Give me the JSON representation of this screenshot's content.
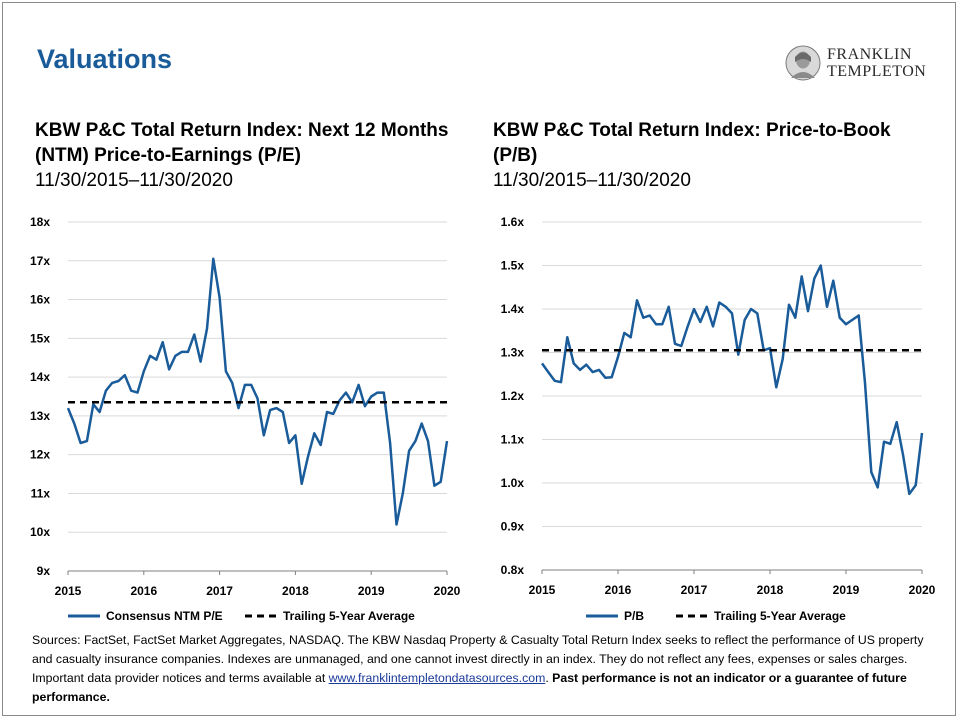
{
  "page": {
    "title": "Valuations",
    "logo": {
      "line1": "FRANKLIN",
      "line2": "TEMPLETON"
    }
  },
  "footnote": {
    "text": "Sources: FactSet, FactSet Market Aggregates, NASDAQ. The KBW Nasdaq Property & Casualty Total Return Index seeks to reflect the performance of US property and casualty insurance companies. Indexes are unmanaged, and one cannot invest directly in an index. They do not reflect any fees, expenses or sales charges. Important data provider notices and terms available at ",
    "link": "www.franklintempletondatasources.com",
    "after_link": ". ",
    "bold": "Past performance is not an indicator or a guarantee of future performance."
  },
  "chart_data": [
    {
      "type": "line",
      "title": "KBW P&C Total Return Index: Next 12 Months (NTM) Price-to-Earnings (P/E)",
      "subtitle": "11/30/2015–11/30/2020",
      "x_ticks": [
        "2015",
        "2016",
        "2017",
        "2018",
        "2019",
        "2020"
      ],
      "xlim": [
        2015,
        2020
      ],
      "y_ticks": [
        "9x",
        "10x",
        "11x",
        "12x",
        "13x",
        "14x",
        "15x",
        "16x",
        "17x",
        "18x"
      ],
      "ylim": [
        9,
        18
      ],
      "grid": true,
      "legend": "bottom",
      "series": [
        {
          "name": "Consensus NTM P/E",
          "style": "solid",
          "color": "#1a5b9a",
          "x_start": 2015,
          "x_step": 0.08333,
          "values": [
            13.2,
            12.8,
            12.3,
            12.35,
            13.3,
            13.1,
            13.65,
            13.85,
            13.9,
            14.05,
            13.65,
            13.6,
            14.15,
            14.55,
            14.45,
            14.9,
            14.2,
            14.55,
            14.65,
            14.65,
            15.1,
            14.4,
            15.25,
            17.05,
            16.05,
            14.15,
            13.85,
            13.2,
            13.8,
            13.8,
            13.45,
            12.5,
            13.15,
            13.2,
            13.1,
            12.3,
            12.5,
            11.25,
            11.95,
            12.55,
            12.25,
            13.1,
            13.05,
            13.4,
            13.6,
            13.35,
            13.8,
            13.25,
            13.5,
            13.6,
            13.6,
            12.3,
            10.2,
            11.0,
            12.1,
            12.35,
            12.8,
            12.35,
            11.2,
            11.3,
            12.35
          ]
        },
        {
          "name": "Trailing 5-Year Average",
          "style": "dashed",
          "color": "#000000",
          "x": [
            2015,
            2020
          ],
          "values": [
            13.35,
            13.35
          ]
        }
      ]
    },
    {
      "type": "line",
      "title": "KBW P&C Total Return Index: Price-to-Book (P/B)",
      "subtitle": "11/30/2015–11/30/2020",
      "x_ticks": [
        "2015",
        "2016",
        "2017",
        "2018",
        "2019",
        "2020"
      ],
      "xlim": [
        2015,
        2020
      ],
      "y_ticks": [
        "0.8x",
        "0.9x",
        "1.0x",
        "1.1x",
        "1.2x",
        "1.3x",
        "1.4x",
        "1.5x",
        "1.6x"
      ],
      "ylim": [
        0.8,
        1.6
      ],
      "grid": true,
      "legend": "bottom",
      "series": [
        {
          "name": "P/B",
          "style": "solid",
          "color": "#1a5b9a",
          "x_start": 2015,
          "x_step": 0.08333,
          "values": [
            1.275,
            1.255,
            1.235,
            1.232,
            1.335,
            1.275,
            1.26,
            1.272,
            1.255,
            1.26,
            1.242,
            1.243,
            1.29,
            1.345,
            1.335,
            1.42,
            1.38,
            1.385,
            1.365,
            1.365,
            1.405,
            1.32,
            1.315,
            1.36,
            1.4,
            1.37,
            1.405,
            1.36,
            1.415,
            1.405,
            1.39,
            1.295,
            1.375,
            1.4,
            1.39,
            1.305,
            1.31,
            1.22,
            1.285,
            1.41,
            1.38,
            1.475,
            1.395,
            1.47,
            1.5,
            1.405,
            1.465,
            1.38,
            1.365,
            1.375,
            1.385,
            1.23,
            1.025,
            0.99,
            1.095,
            1.09,
            1.14,
            1.065,
            0.975,
            0.995,
            1.115
          ]
        },
        {
          "name": "Trailing 5-Year Average",
          "style": "dashed",
          "color": "#000000",
          "x": [
            2015,
            2020
          ],
          "values": [
            1.305,
            1.305
          ]
        }
      ]
    }
  ]
}
